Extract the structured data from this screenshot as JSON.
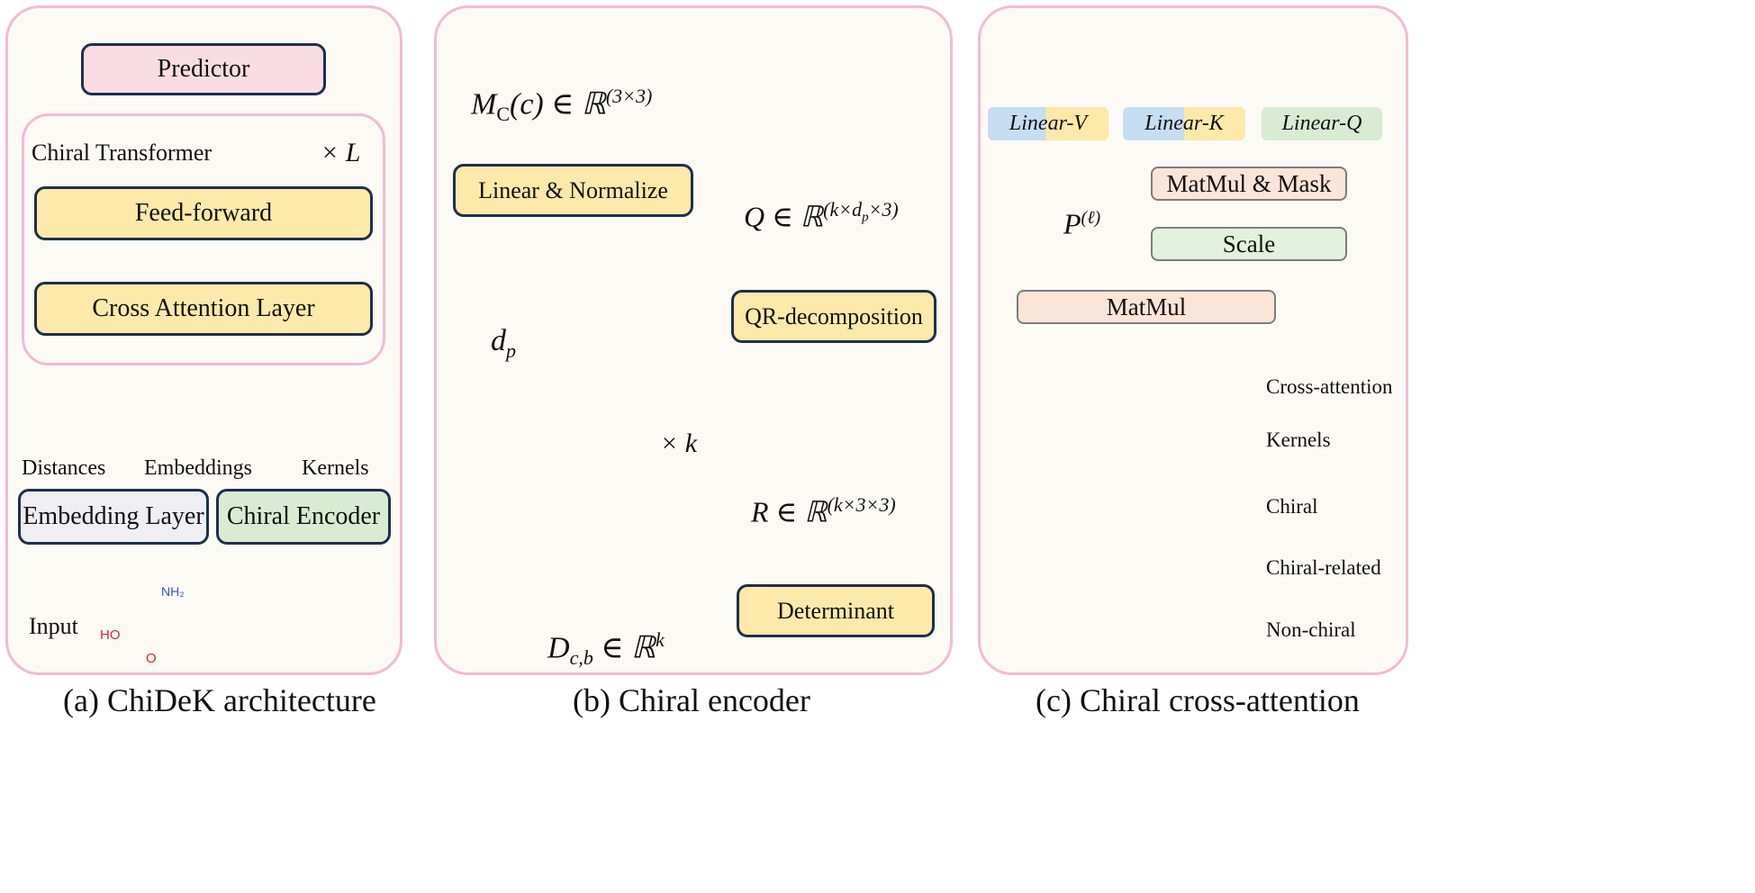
{
  "panel_a": {
    "caption": "(a) ChiDeK architecture",
    "predictor": "Predictor",
    "transformer_title": "Chiral Transformer",
    "times_l": "× L",
    "feed_forward": "Feed-forward",
    "cross_attention_layer": "Cross Attention Layer",
    "distances": "Distances",
    "embeddings": "Embeddings",
    "kernels": "Kernels",
    "embedding_layer": "Embedding Layer",
    "chiral_encoder": "Chiral Encoder",
    "input": "Input",
    "atom_nh2": "NH₂",
    "atom_ho": "HO",
    "atom_o": "O"
  },
  "panel_b": {
    "caption": "(b) Chiral encoder",
    "mc": "M_C(c) ∈ ℝ^(3×3)",
    "mc_base": "M",
    "mc_sub": "C",
    "mc_rest": "(c) ∈ ℝ",
    "mc_sup": "(3×3)",
    "linear_normalize": "Linear & Normalize",
    "dp": "d",
    "dp_sub": "p",
    "times_k": "× k",
    "q_base": "Q ∈ ℝ",
    "q_sup": "(k×d",
    "q_sup_sub": "p",
    "q_sup_end": "×3)",
    "qr": "QR-decomposition",
    "r_base": "R ∈ ℝ",
    "r_sup": "(k×3×3)",
    "determinant": "Determinant",
    "d_base": "D",
    "d_sub": "c,b",
    "d_rest": " ∈ ℝ",
    "d_sup": "k"
  },
  "panel_c": {
    "caption": "(c) Chiral cross-attention",
    "linear_v": "Linear-V",
    "linear_k": "Linear-K",
    "linear_q": "Linear-Q",
    "matmul_mask": "MatMul & Mask",
    "p_base": "P",
    "p_sup": "(ℓ)",
    "scale": "Scale",
    "matmul": "MatMul",
    "legend": [
      "Cross-attention",
      "Kernels",
      "Chiral",
      "Chiral-related",
      "Non-chiral"
    ]
  },
  "colors": {
    "yellow": "#fde9a9",
    "green": "#d9ebd3",
    "blue": "#c7ddf0",
    "pink": "#fadde3",
    "gray": "#eeeef3",
    "panel_border": "#f0bcd5",
    "box_border": "#1f2f4d",
    "arrow": "#9a9a9a",
    "cell_yellow": "#fbd66e",
    "cell_green": "#b6d7a8",
    "cell_pink": "#f3b9a3",
    "cell_blue": "#b7d1ea",
    "cell_gray": "#c0c0c0",
    "cell_light": "#e4f0df",
    "mol_blue": "#8fb8e6",
    "mol_yellow": "#f5dc5a",
    "mol_green": "#9ccc86",
    "orange_arrow": "#e6a400",
    "blue_arrow": "#6aa8dc"
  }
}
